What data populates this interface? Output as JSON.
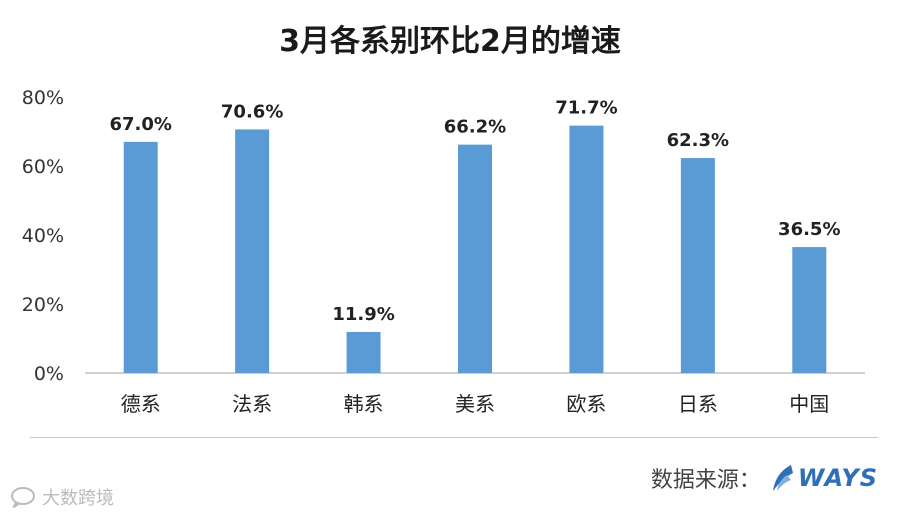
{
  "chart_data": {
    "type": "bar",
    "title": "3月各系别环比2月的增速",
    "categories": [
      "德系",
      "法系",
      "韩系",
      "美系",
      "欧系",
      "日系",
      "中国"
    ],
    "values": [
      67.0,
      70.6,
      11.9,
      66.2,
      71.7,
      62.3,
      36.5
    ],
    "data_labels": [
      "67.0%",
      "70.6%",
      "11.9%",
      "66.2%",
      "71.7%",
      "62.3%",
      "36.5%"
    ],
    "yticks": [
      "0%",
      "20%",
      "40%",
      "60%",
      "80%"
    ],
    "ylim": [
      0,
      80
    ],
    "xlabel": "",
    "ylabel": "",
    "grid": false,
    "legend": "none",
    "bar_color": "#5b9bd5"
  },
  "footer": {
    "source_label": "数据来源：",
    "logo_text": "WAYS",
    "watermark_text": "大数跨境"
  },
  "colors": {
    "logo": "#2f6fb6",
    "axis": "#bfbfbf"
  }
}
